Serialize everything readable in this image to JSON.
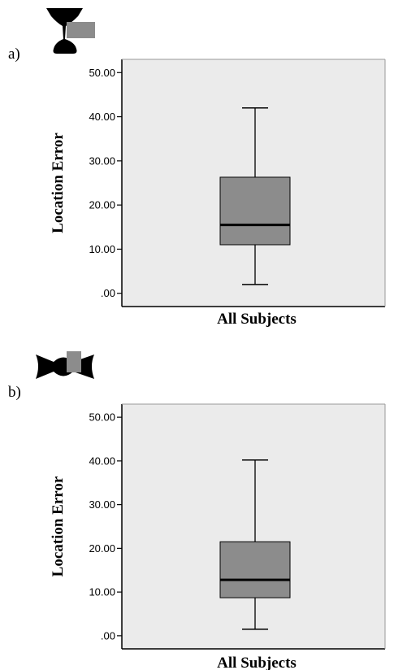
{
  "panels": [
    {
      "label": "a)",
      "icon": "chalice-shape-with-grey-square-icon"
    },
    {
      "label": "b)",
      "icon": "bowtie-shape-with-grey-square-icon"
    }
  ],
  "colors": {
    "plot_bg": "#ebebeb",
    "box_fill": "#8c8c8c",
    "median": "#000000",
    "frame": "#000000"
  },
  "chart_data": [
    {
      "type": "box",
      "ylabel": "Location Error",
      "xlabel": "All Subjects",
      "yticks": [
        ".00",
        "10.00",
        "20.00",
        "30.00",
        "40.00",
        "50.00"
      ],
      "ytick_values": [
        0,
        10,
        20,
        30,
        40,
        50
      ],
      "ylim": [
        -3,
        53
      ],
      "grid": false,
      "boxes": [
        {
          "category": "All Subjects",
          "whisker_low": 2,
          "q1": 11,
          "median": 15.5,
          "q3": 26.3,
          "whisker_high": 42
        }
      ]
    },
    {
      "type": "box",
      "ylabel": "Location Error",
      "xlabel": "All Subjects",
      "yticks": [
        ".00",
        "10.00",
        "20.00",
        "30.00",
        "40.00",
        "50.00"
      ],
      "ytick_values": [
        0,
        10,
        20,
        30,
        40,
        50
      ],
      "ylim": [
        -3,
        53
      ],
      "grid": false,
      "boxes": [
        {
          "category": "All Subjects",
          "whisker_low": 1.5,
          "q1": 8.7,
          "median": 12.8,
          "q3": 21.5,
          "whisker_high": 40.2
        }
      ]
    }
  ]
}
